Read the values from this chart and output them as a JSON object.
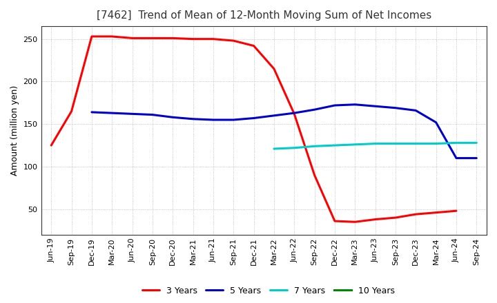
{
  "title": "[7462]  Trend of Mean of 12-Month Moving Sum of Net Incomes",
  "ylabel": "Amount (million yen)",
  "background_color": "#ffffff",
  "plot_background_color": "#ffffff",
  "grid_color": "#aaaaaa",
  "x_labels": [
    "Jun-19",
    "Sep-19",
    "Dec-19",
    "Mar-20",
    "Jun-20",
    "Sep-20",
    "Dec-20",
    "Mar-21",
    "Jun-21",
    "Sep-21",
    "Dec-21",
    "Mar-22",
    "Jun-22",
    "Sep-22",
    "Dec-22",
    "Mar-23",
    "Jun-23",
    "Sep-23",
    "Dec-23",
    "Mar-24",
    "Jun-24",
    "Sep-24"
  ],
  "ylim": [
    20,
    265
  ],
  "yticks": [
    50,
    100,
    150,
    200,
    250
  ],
  "series": {
    "3 Years": {
      "color": "#ff0000",
      "data_x": [
        0,
        1,
        2,
        3,
        4,
        5,
        6,
        7,
        8,
        9,
        10,
        11,
        12,
        13,
        14,
        15,
        16,
        17,
        18,
        19,
        20
      ],
      "data_y": [
        125,
        165,
        253,
        253,
        251,
        251,
        251,
        250,
        250,
        248,
        242,
        215,
        162,
        90,
        36,
        35,
        38,
        40,
        44,
        46,
        48
      ]
    },
    "5 Years": {
      "color": "#0000cc",
      "data_x": [
        2,
        3,
        4,
        5,
        6,
        7,
        8,
        9,
        10,
        11,
        12,
        13,
        14,
        15,
        16,
        17,
        18,
        19,
        20,
        21
      ],
      "data_y": [
        164,
        163,
        162,
        161,
        158,
        156,
        155,
        155,
        157,
        160,
        163,
        167,
        172,
        173,
        171,
        169,
        166,
        152,
        110,
        110
      ]
    },
    "7 Years": {
      "color": "#00cccc",
      "data_x": [
        11,
        12,
        13,
        14,
        15,
        16,
        17,
        18,
        19,
        20,
        21
      ],
      "data_y": [
        121,
        122,
        124,
        125,
        126,
        127,
        127,
        127,
        127,
        128,
        128
      ]
    },
    "10 Years": {
      "color": "#008800",
      "data_x": [],
      "data_y": []
    }
  },
  "linewidth": 2.2,
  "title_fontsize": 11,
  "title_color": "#333333",
  "label_fontsize": 9,
  "tick_fontsize": 8,
  "legend_fontsize": 9
}
